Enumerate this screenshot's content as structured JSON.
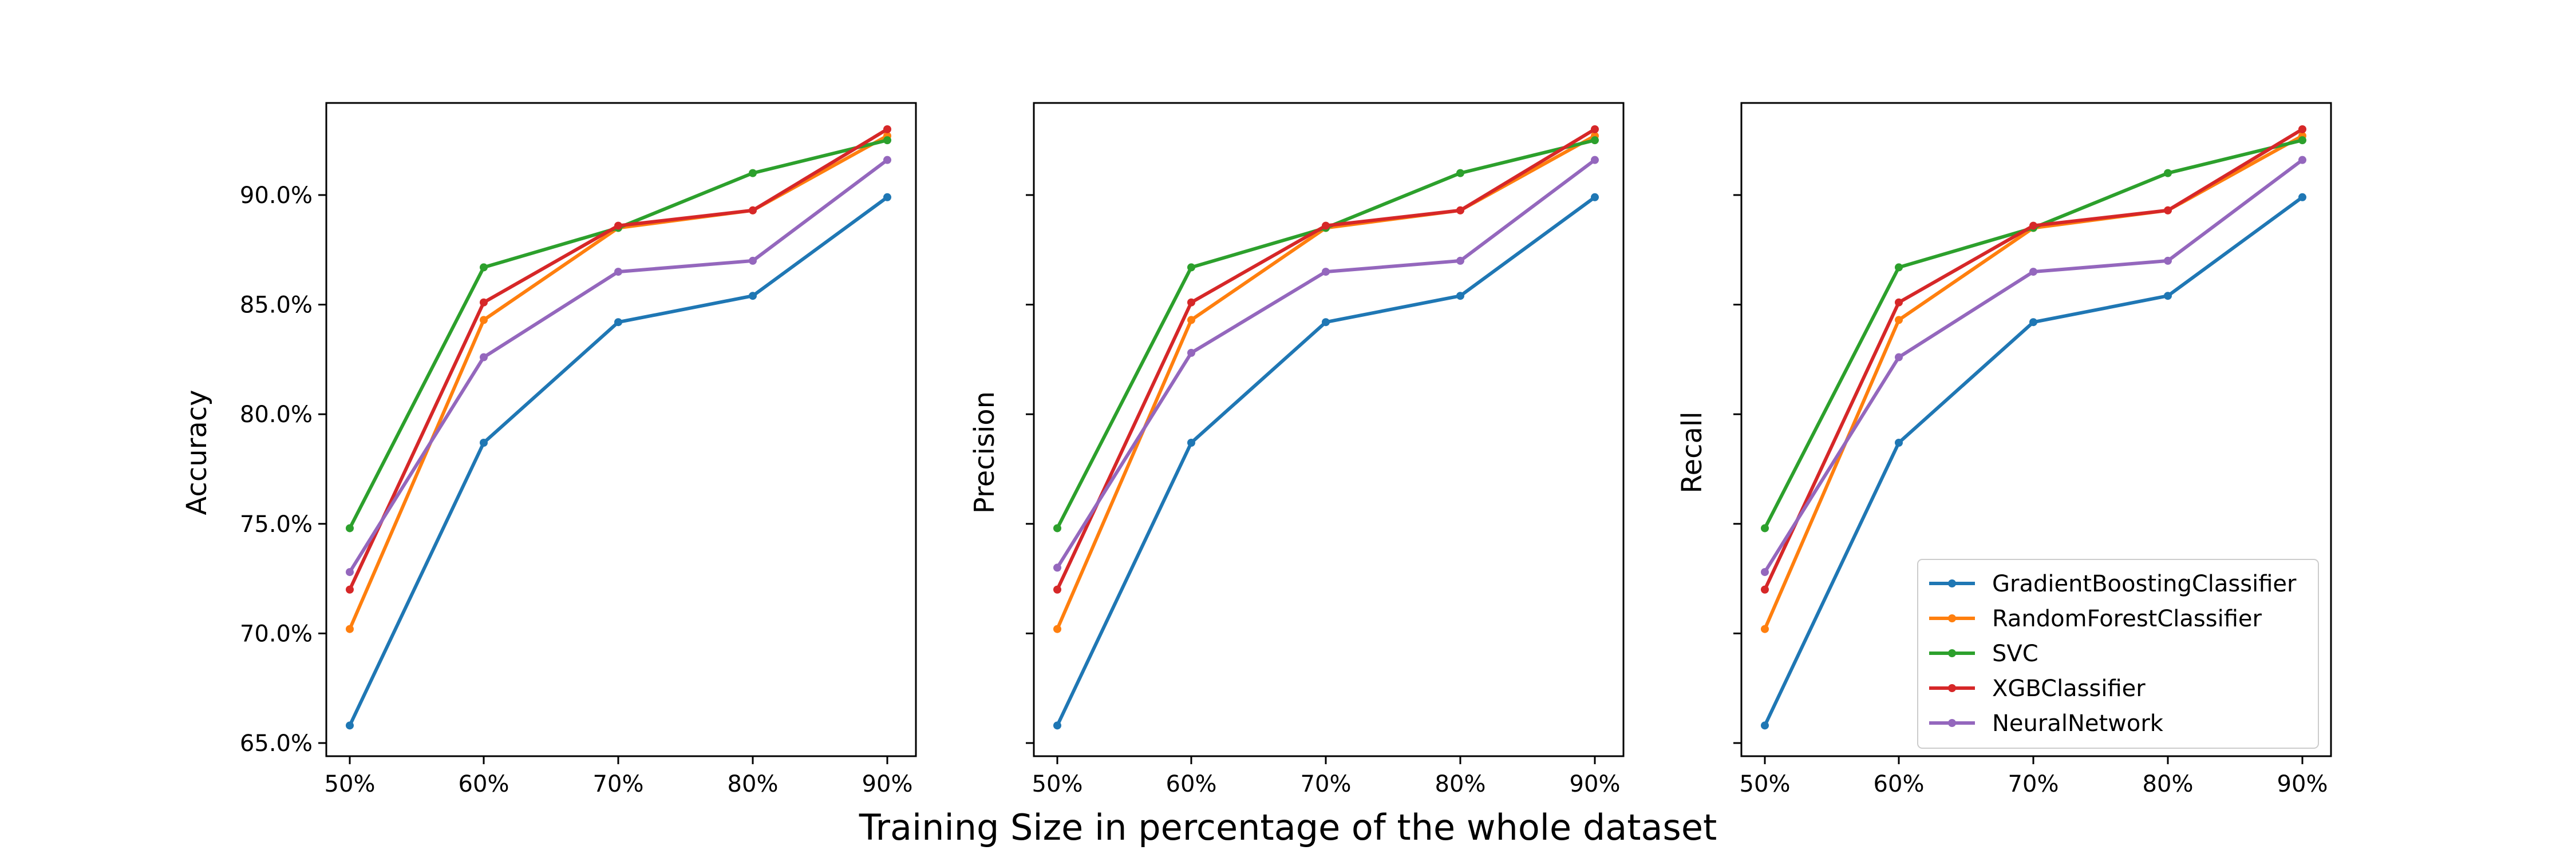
{
  "figure": {
    "supxlabel": "Training Size in percentage of the whole dataset"
  },
  "colors": {
    "GradientBoostingClassifier": "#1f77b4",
    "RandomForestClassifier": "#ff7f0e",
    "SVC": "#2ca02c",
    "XGBClassifier": "#d62728",
    "NeuralNetwork": "#9467bd"
  },
  "chart_data": [
    {
      "type": "line",
      "title": "",
      "xlabel": "",
      "ylabel": "Accuracy",
      "x": [
        "50%",
        "60%",
        "70%",
        "80%",
        "90%"
      ],
      "y_ticks": [
        "65.0%",
        "70.0%",
        "75.0%",
        "80.0%",
        "85.0%",
        "90.0%"
      ],
      "y_tick_values": [
        65,
        70,
        75,
        80,
        85,
        90
      ],
      "ylim": [
        64.4,
        94.2
      ],
      "show_y_tick_labels": true,
      "grid": false,
      "legend": null,
      "series": [
        {
          "name": "GradientBoostingClassifier",
          "values": [
            65.8,
            78.7,
            84.2,
            85.4,
            89.9
          ]
        },
        {
          "name": "RandomForestClassifier",
          "values": [
            70.2,
            84.3,
            88.5,
            89.3,
            92.7
          ]
        },
        {
          "name": "SVC",
          "values": [
            74.8,
            86.7,
            88.5,
            91.0,
            92.5
          ]
        },
        {
          "name": "XGBClassifier",
          "values": [
            72.0,
            85.1,
            88.6,
            89.3,
            93.0
          ]
        },
        {
          "name": "NeuralNetwork",
          "values": [
            72.8,
            82.6,
            86.5,
            87.0,
            91.6
          ]
        }
      ]
    },
    {
      "type": "line",
      "title": "",
      "xlabel": "",
      "ylabel": "Precision",
      "x": [
        "50%",
        "60%",
        "70%",
        "80%",
        "90%"
      ],
      "y_ticks": [
        "65.0%",
        "70.0%",
        "75.0%",
        "80.0%",
        "85.0%",
        "90.0%"
      ],
      "y_tick_values": [
        65,
        70,
        75,
        80,
        85,
        90
      ],
      "ylim": [
        64.4,
        94.2
      ],
      "show_y_tick_labels": false,
      "grid": false,
      "legend": null,
      "series": [
        {
          "name": "GradientBoostingClassifier",
          "values": [
            65.8,
            78.7,
            84.2,
            85.4,
            89.9
          ]
        },
        {
          "name": "RandomForestClassifier",
          "values": [
            70.2,
            84.3,
            88.5,
            89.3,
            92.7
          ]
        },
        {
          "name": "SVC",
          "values": [
            74.8,
            86.7,
            88.5,
            91.0,
            92.5
          ]
        },
        {
          "name": "XGBClassifier",
          "values": [
            72.0,
            85.1,
            88.6,
            89.3,
            93.0
          ]
        },
        {
          "name": "NeuralNetwork",
          "values": [
            73.0,
            82.8,
            86.5,
            87.0,
            91.6
          ]
        }
      ]
    },
    {
      "type": "line",
      "title": "",
      "xlabel": "",
      "ylabel": "Recall",
      "x": [
        "50%",
        "60%",
        "70%",
        "80%",
        "90%"
      ],
      "y_ticks": [
        "65.0%",
        "70.0%",
        "75.0%",
        "80.0%",
        "85.0%",
        "90.0%"
      ],
      "y_tick_values": [
        65,
        70,
        75,
        80,
        85,
        90
      ],
      "ylim": [
        64.4,
        94.2
      ],
      "show_y_tick_labels": false,
      "grid": false,
      "legend": "lower-right",
      "series": [
        {
          "name": "GradientBoostingClassifier",
          "values": [
            65.8,
            78.7,
            84.2,
            85.4,
            89.9
          ]
        },
        {
          "name": "RandomForestClassifier",
          "values": [
            70.2,
            84.3,
            88.5,
            89.3,
            92.7
          ]
        },
        {
          "name": "SVC",
          "values": [
            74.8,
            86.7,
            88.5,
            91.0,
            92.5
          ]
        },
        {
          "name": "XGBClassifier",
          "values": [
            72.0,
            85.1,
            88.6,
            89.3,
            93.0
          ]
        },
        {
          "name": "NeuralNetwork",
          "values": [
            72.8,
            82.6,
            86.5,
            87.0,
            91.6
          ]
        }
      ]
    }
  ]
}
